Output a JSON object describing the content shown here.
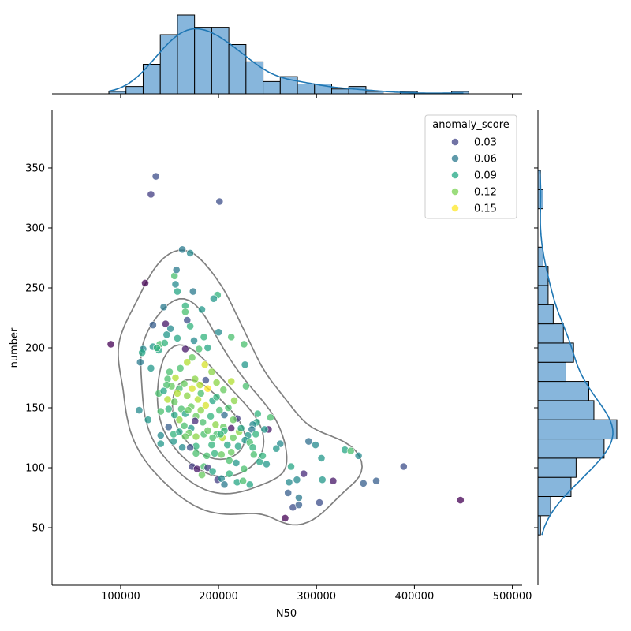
{
  "chart_data": {
    "type": "scatter",
    "title": "",
    "xlabel": "N50",
    "ylabel": "number",
    "xlim": [
      30000,
      510000
    ],
    "ylim": [
      2,
      398
    ],
    "x_ticks": [
      100000,
      200000,
      300000,
      400000,
      500000
    ],
    "x_tick_labels": [
      "100000",
      "200000",
      "300000",
      "400000",
      "500000"
    ],
    "y_ticks": [
      50,
      100,
      150,
      200,
      250,
      300,
      350
    ],
    "y_tick_labels": [
      "50",
      "100",
      "150",
      "200",
      "250",
      "300",
      "350"
    ],
    "grid": false,
    "legend": {
      "title": "anomaly_score",
      "placement": "top-right",
      "entries": [
        {
          "label": "0.03",
          "value": 0.03,
          "color": "#414487"
        },
        {
          "label": "0.06",
          "value": 0.06,
          "color": "#2a788e"
        },
        {
          "label": "0.09",
          "value": 0.09,
          "color": "#22a884"
        },
        {
          "label": "0.12",
          "value": 0.12,
          "color": "#7ad151"
        },
        {
          "label": "0.15",
          "value": 0.15,
          "color": "#fde725"
        }
      ]
    },
    "colormap": "viridis",
    "hue_range": [
      0.0,
      0.17
    ],
    "points": [
      [
        90000,
        203,
        0.0
      ],
      [
        447000,
        73,
        0.0
      ],
      [
        131000,
        328,
        0.03
      ],
      [
        136000,
        343,
        0.04
      ],
      [
        201000,
        322,
        0.04
      ],
      [
        125000,
        254,
        0.0
      ],
      [
        389000,
        101,
        0.04
      ],
      [
        361000,
        89,
        0.05
      ],
      [
        348000,
        87,
        0.05
      ],
      [
        317000,
        89,
        0.01
      ],
      [
        303000,
        71,
        0.04
      ],
      [
        287000,
        95,
        0.02
      ],
      [
        276000,
        67,
        0.04
      ],
      [
        282000,
        69,
        0.05
      ],
      [
        282000,
        75,
        0.07
      ],
      [
        271000,
        79,
        0.05
      ],
      [
        268000,
        58,
        0.0
      ],
      [
        280000,
        90,
        0.08
      ],
      [
        272000,
        88,
        0.08
      ],
      [
        274000,
        101,
        0.1
      ],
      [
        292000,
        122,
        0.06
      ],
      [
        299000,
        119,
        0.08
      ],
      [
        305000,
        108,
        0.09
      ],
      [
        306000,
        90,
        0.09
      ],
      [
        329000,
        115,
        0.1
      ],
      [
        335000,
        114,
        0.12
      ],
      [
        343000,
        110,
        0.08
      ],
      [
        251000,
        132,
        0.01
      ],
      [
        263000,
        120,
        0.08
      ],
      [
        259000,
        116,
        0.09
      ],
      [
        253000,
        142,
        0.12
      ],
      [
        240000,
        145,
        0.11
      ],
      [
        247000,
        132,
        0.09
      ],
      [
        239000,
        138,
        0.1
      ],
      [
        235000,
        136,
        0.08
      ],
      [
        234000,
        132,
        0.07
      ],
      [
        230000,
        127,
        0.09
      ],
      [
        236000,
        111,
        0.12
      ],
      [
        242000,
        105,
        0.1
      ],
      [
        245000,
        110,
        0.11
      ],
      [
        249000,
        103,
        0.09
      ],
      [
        228000,
        168,
        0.12
      ],
      [
        227000,
        186,
        0.09
      ],
      [
        226000,
        203,
        0.12
      ],
      [
        213000,
        209,
        0.12
      ],
      [
        200000,
        213,
        0.08
      ],
      [
        199000,
        244,
        0.11
      ],
      [
        195000,
        241,
        0.09
      ],
      [
        183000,
        232,
        0.09
      ],
      [
        174000,
        247,
        0.07
      ],
      [
        166000,
        235,
        0.11
      ],
      [
        166000,
        230,
        0.12
      ],
      [
        158000,
        247,
        0.1
      ],
      [
        156000,
        253,
        0.08
      ],
      [
        155000,
        260,
        0.12
      ],
      [
        157000,
        265,
        0.07
      ],
      [
        163000,
        282,
        0.07
      ],
      [
        171000,
        279,
        0.08
      ],
      [
        171000,
        218,
        0.11
      ],
      [
        168000,
        223,
        0.04
      ],
      [
        146000,
        220,
        0.01
      ],
      [
        133000,
        219,
        0.05
      ],
      [
        144000,
        234,
        0.07
      ],
      [
        123000,
        199,
        0.08
      ],
      [
        122000,
        196,
        0.1
      ],
      [
        120000,
        188,
        0.07
      ],
      [
        131000,
        183,
        0.09
      ],
      [
        140000,
        203,
        0.12
      ],
      [
        145000,
        204,
        0.11
      ],
      [
        151000,
        216,
        0.08
      ],
      [
        158000,
        208,
        0.1
      ],
      [
        175000,
        206,
        0.08
      ],
      [
        185000,
        209,
        0.11
      ],
      [
        189000,
        200,
        0.1
      ],
      [
        180000,
        199,
        0.12
      ],
      [
        166000,
        199,
        0.01
      ],
      [
        147000,
        211,
        0.09
      ],
      [
        139000,
        198,
        0.1
      ],
      [
        133000,
        201,
        0.09
      ],
      [
        137000,
        200,
        0.11
      ],
      [
        150000,
        180,
        0.12
      ],
      [
        148000,
        174,
        0.12
      ],
      [
        152000,
        168,
        0.13
      ],
      [
        147000,
        169,
        0.12
      ],
      [
        156000,
        175,
        0.15
      ],
      [
        161000,
        183,
        0.12
      ],
      [
        168000,
        188,
        0.15
      ],
      [
        173000,
        192,
        0.13
      ],
      [
        186000,
        186,
        0.16
      ],
      [
        193000,
        180,
        0.14
      ],
      [
        198000,
        171,
        0.14
      ],
      [
        205000,
        165,
        0.13
      ],
      [
        213000,
        172,
        0.15
      ],
      [
        194000,
        156,
        0.1
      ],
      [
        189000,
        166,
        0.17
      ],
      [
        181000,
        169,
        0.15
      ],
      [
        173000,
        166,
        0.16
      ],
      [
        168000,
        160,
        0.14
      ],
      [
        172000,
        151,
        0.13
      ],
      [
        182000,
        148,
        0.14
      ],
      [
        187000,
        152,
        0.16
      ],
      [
        179000,
        157,
        0.15
      ],
      [
        177000,
        143,
        0.13
      ],
      [
        184000,
        138,
        0.12
      ],
      [
        192000,
        143,
        0.11
      ],
      [
        197000,
        136,
        0.14
      ],
      [
        205000,
        134,
        0.13
      ],
      [
        198000,
        128,
        0.12
      ],
      [
        204000,
        125,
        0.15
      ],
      [
        193000,
        119,
        0.11
      ],
      [
        185000,
        128,
        0.12
      ],
      [
        177000,
        126,
        0.14
      ],
      [
        172000,
        133,
        0.09
      ],
      [
        165000,
        135,
        0.12
      ],
      [
        160000,
        140,
        0.14
      ],
      [
        155000,
        144,
        0.1
      ],
      [
        149000,
        149,
        0.11
      ],
      [
        141000,
        147,
        0.12
      ],
      [
        139000,
        162,
        0.12
      ],
      [
        144000,
        164,
        0.1
      ],
      [
        148000,
        157,
        0.15
      ],
      [
        155000,
        155,
        0.13
      ],
      [
        162000,
        149,
        0.12
      ],
      [
        166000,
        145,
        0.1
      ],
      [
        170000,
        129,
        0.13
      ],
      [
        177000,
        118,
        0.11
      ],
      [
        171000,
        117,
        0.04
      ],
      [
        163000,
        117,
        0.08
      ],
      [
        154000,
        122,
        0.09
      ],
      [
        149000,
        134,
        0.05
      ],
      [
        141000,
        127,
        0.08
      ],
      [
        141000,
        120,
        0.09
      ],
      [
        128000,
        140,
        0.09
      ],
      [
        119000,
        148,
        0.08
      ],
      [
        154000,
        128,
        0.11
      ],
      [
        166000,
        126,
        0.13
      ],
      [
        169000,
        148,
        0.13
      ],
      [
        177000,
        112,
        0.12
      ],
      [
        185000,
        101,
        0.12
      ],
      [
        183000,
        94,
        0.13
      ],
      [
        189000,
        100,
        0.03
      ],
      [
        194000,
        97,
        0.1
      ],
      [
        199000,
        90,
        0.03
      ],
      [
        203000,
        91,
        0.08
      ],
      [
        206000,
        86,
        0.07
      ],
      [
        211000,
        95,
        0.11
      ],
      [
        219000,
        88,
        0.1
      ],
      [
        225000,
        89,
        0.12
      ],
      [
        232000,
        86,
        0.1
      ],
      [
        226000,
        99,
        0.12
      ],
      [
        218000,
        104,
        0.09
      ],
      [
        211000,
        106,
        0.12
      ],
      [
        213000,
        113,
        0.13
      ],
      [
        209000,
        119,
        0.1
      ],
      [
        215000,
        125,
        0.13
      ],
      [
        221000,
        130,
        0.14
      ],
      [
        219000,
        141,
        0.03
      ],
      [
        223000,
        133,
        0.1
      ],
      [
        227000,
        123,
        0.09
      ],
      [
        232000,
        121,
        0.12
      ],
      [
        235000,
        117,
        0.11
      ],
      [
        238000,
        128,
        0.11
      ],
      [
        206000,
        144,
        0.06
      ],
      [
        210000,
        150,
        0.12
      ],
      [
        216000,
        156,
        0.14
      ],
      [
        201000,
        148,
        0.12
      ],
      [
        213000,
        133,
        0.01
      ],
      [
        220000,
        118,
        0.1
      ],
      [
        206000,
        131,
        0.11
      ],
      [
        196000,
        112,
        0.11
      ],
      [
        203000,
        111,
        0.13
      ],
      [
        188000,
        110,
        0.12
      ],
      [
        189000,
        131,
        0.13
      ],
      [
        194000,
        125,
        0.12
      ],
      [
        176000,
        139,
        0.02
      ],
      [
        160000,
        130,
        0.1
      ],
      [
        173000,
        101,
        0.03
      ],
      [
        178000,
        99,
        0.01
      ],
      [
        198000,
        159,
        0.11
      ],
      [
        182000,
        162,
        0.12
      ],
      [
        176000,
        174,
        0.14
      ],
      [
        165000,
        170,
        0.13
      ],
      [
        160000,
        166,
        0.12
      ],
      [
        158000,
        162,
        0.15
      ],
      [
        187000,
        173,
        0.04
      ],
      [
        202000,
        128,
        0.11
      ],
      [
        215000,
        140,
        0.13
      ]
    ]
  },
  "kde_levels": 4
}
